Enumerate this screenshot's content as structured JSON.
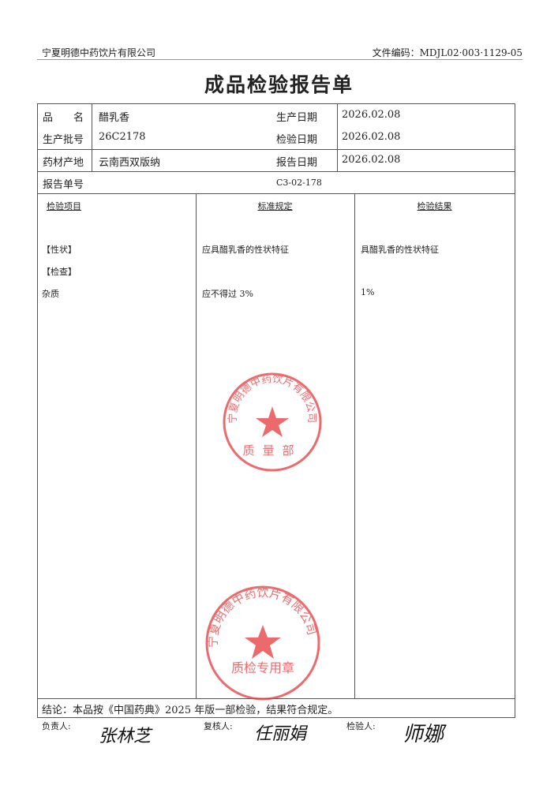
{
  "header": {
    "company": "宁夏明德中药饮片有限公司",
    "doc_code": "文件编码：MDJL02·003·1129-05"
  },
  "title": "成品检验报告单",
  "info": {
    "product_name_label": "品　　名",
    "product_name": "醋乳香",
    "batch_label": "生产批号",
    "batch": "26C2178",
    "origin_label": "药材产地",
    "origin": "云南西双版纳",
    "report_no_label": "报告单号",
    "report_no": "C3-02-178",
    "prod_date_label": "生产日期",
    "prod_date": "2026.02.08",
    "insp_date_label": "检验日期",
    "insp_date": "2026.02.08",
    "report_date_label": "报告日期",
    "report_date": "2026.02.08"
  },
  "columns": [
    "检验项目",
    "标准规定",
    "检验结果"
  ],
  "rows": [
    {
      "item": "【性状】",
      "standard": "应具醋乳香的性状特征",
      "result": "具醋乳香的性状特征"
    },
    {
      "item": "【检查】",
      "standard": "",
      "result": ""
    },
    {
      "item": "杂质",
      "standard": "应不得过 3%",
      "result": "1%"
    }
  ],
  "conclusion": "结论：本品按《中国药典》2025 年版一部检验，结果符合规定。",
  "signatures": {
    "responsible_label": "负责人:",
    "responsible": "张林芝",
    "reviewer_label": "复核人:",
    "reviewer": "任丽娟",
    "inspector_label": "检验人:",
    "inspector": "师娜"
  },
  "stamps": {
    "top": {
      "text": "宁夏明德中药饮片有限公司",
      "sub": "质量部",
      "color": "#e8393c"
    },
    "bottom": {
      "text": "宁夏明德中药饮片有限公司",
      "sub": "质检专用章",
      "color": "#e8393c"
    }
  }
}
